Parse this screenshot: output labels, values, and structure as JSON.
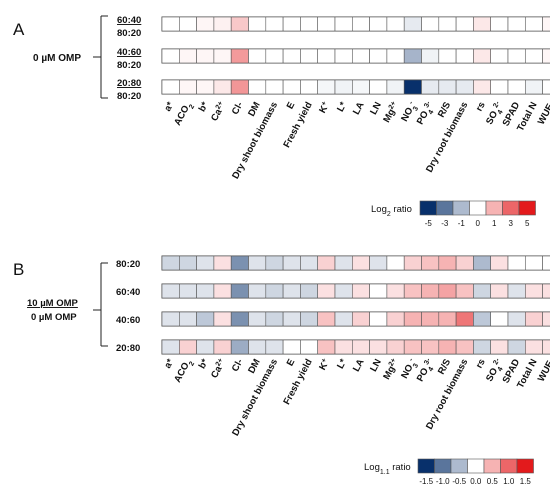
{
  "chart_data": [
    {
      "type": "heatmap",
      "panel": "A",
      "group_label": "0 µM OMP",
      "rows": [
        {
          "num": "60:40",
          "den": "80:20"
        },
        {
          "num": "40:60",
          "den": "80:20"
        },
        {
          "num": "20:80",
          "den": "80:20"
        }
      ],
      "columns": [
        {
          "label": "a*"
        },
        {
          "label": "ACO",
          "sub": "2"
        },
        {
          "label": "b*"
        },
        {
          "label": "Ca",
          "sup": "2+"
        },
        {
          "label": "Cl-"
        },
        {
          "label": "DM"
        },
        {
          "label": "Dry shoot biomass"
        },
        {
          "label": "E"
        },
        {
          "label": "Fresh yield"
        },
        {
          "label": "K",
          "sup": "+"
        },
        {
          "label": "L*"
        },
        {
          "label": "LA"
        },
        {
          "label": "LN"
        },
        {
          "label": "Mg",
          "sup": "2+"
        },
        {
          "label": "NO",
          "sub": "3",
          "sup": "-"
        },
        {
          "label": "PO",
          "sub": "4",
          "sup": "3-"
        },
        {
          "label": "R/S"
        },
        {
          "label": "Dry root biomass"
        },
        {
          "label": "rs"
        },
        {
          "label": "SO",
          "sub": "4",
          "sup": "2-"
        },
        {
          "label": "SPAD"
        },
        {
          "label": "Total N"
        },
        {
          "label": "WUE",
          "sub": "i"
        }
      ],
      "values": [
        [
          0,
          0,
          0.2,
          0.3,
          1.2,
          0,
          0,
          0,
          0,
          0,
          0,
          0,
          0,
          0,
          -0.5,
          0,
          0,
          0,
          0.5,
          0,
          0,
          0,
          0.2
        ],
        [
          0,
          0.2,
          0.2,
          0.2,
          2.2,
          0,
          0,
          0,
          0,
          0,
          0,
          0,
          0,
          0,
          -1.8,
          -0.3,
          0,
          0,
          0.5,
          0,
          0,
          0,
          0.2
        ],
        [
          0,
          0.2,
          0.2,
          0.5,
          2.3,
          0,
          0,
          0,
          0,
          -0.2,
          -0.3,
          -0.2,
          0,
          -0.3,
          -5,
          -0.5,
          -0.5,
          -0.5,
          0.5,
          0,
          0,
          -0.3,
          0
        ]
      ],
      "scale": {
        "title_base": "Log",
        "title_sub": "2",
        "title_tail": " ratio",
        "ticks": [
          "-5",
          "-3",
          "-1",
          "0",
          "1",
          "3",
          "5"
        ],
        "min": -5,
        "max": 5
      },
      "colors": {
        "low": "#08306b",
        "mid": "#ffffff",
        "high": "#e31a1c"
      }
    },
    {
      "type": "heatmap",
      "panel": "B",
      "group_num": "10 µM OMP",
      "group_den": "0 µM OMP",
      "rows": [
        {
          "num": "80:20"
        },
        {
          "num": "60:40"
        },
        {
          "num": "40:60"
        },
        {
          "num": "20:80"
        }
      ],
      "columns": [
        {
          "label": "a*"
        },
        {
          "label": "ACO",
          "sub": "2"
        },
        {
          "label": "b*"
        },
        {
          "label": "Ca",
          "sup": "2+"
        },
        {
          "label": "Cl-"
        },
        {
          "label": "DM"
        },
        {
          "label": "Dry shoot biomass"
        },
        {
          "label": "E"
        },
        {
          "label": "Fresh yield"
        },
        {
          "label": "K",
          "sup": "+"
        },
        {
          "label": "L*"
        },
        {
          "label": "LA"
        },
        {
          "label": "LN"
        },
        {
          "label": "Mg",
          "sup": "2+"
        },
        {
          "label": "NO",
          "sub": "3",
          "sup": "-"
        },
        {
          "label": "PO",
          "sub": "4",
          "sup": "3-"
        },
        {
          "label": "R/S"
        },
        {
          "label": "Dry root biomass"
        },
        {
          "label": "rs"
        },
        {
          "label": "SO",
          "sub": "4",
          "sup": "2-"
        },
        {
          "label": "SPAD"
        },
        {
          "label": "Total N"
        },
        {
          "label": "WUE",
          "sub": "i"
        }
      ],
      "values": [
        [
          -0.3,
          -0.3,
          -0.2,
          0.2,
          -0.8,
          -0.2,
          -0.3,
          -0.2,
          -0.2,
          0.3,
          -0.2,
          0.2,
          -0.2,
          0,
          0.3,
          0.4,
          0.5,
          0.3,
          -0.5,
          0.2,
          0,
          0,
          0
        ],
        [
          -0.2,
          -0.2,
          -0.2,
          0.2,
          -0.8,
          -0.2,
          -0.3,
          -0.2,
          -0.3,
          0.2,
          -0.2,
          0.2,
          0,
          0.2,
          0.4,
          0.5,
          0.6,
          0.4,
          -0.3,
          0.2,
          -0.2,
          0.2,
          0.2
        ],
        [
          -0.2,
          -0.2,
          -0.4,
          0.2,
          -0.8,
          -0.2,
          -0.3,
          -0.2,
          -0.3,
          0.4,
          -0.2,
          0.3,
          0,
          0.3,
          0.5,
          0.5,
          0.5,
          0.9,
          -0.4,
          0,
          -0.2,
          0.3,
          0.2
        ],
        [
          -0.2,
          0.3,
          -0.2,
          0.3,
          -0.6,
          -0.2,
          -0.2,
          0,
          0,
          0.4,
          0.2,
          0.2,
          0.2,
          0.3,
          0.4,
          0.4,
          0.5,
          0.4,
          -0.3,
          0.2,
          -0.3,
          0.2,
          0.2
        ]
      ],
      "scale": {
        "title_base": "Log",
        "title_sub": "1.1",
        "title_tail": " ratio",
        "ticks": [
          "-1.5",
          "-1.0",
          "-0.5",
          "0.0",
          "0.5",
          "1.0",
          "1.5"
        ],
        "min": -1.5,
        "max": 1.5
      },
      "colors": {
        "low": "#08306b",
        "mid": "#ffffff",
        "high": "#e31a1c"
      }
    }
  ]
}
